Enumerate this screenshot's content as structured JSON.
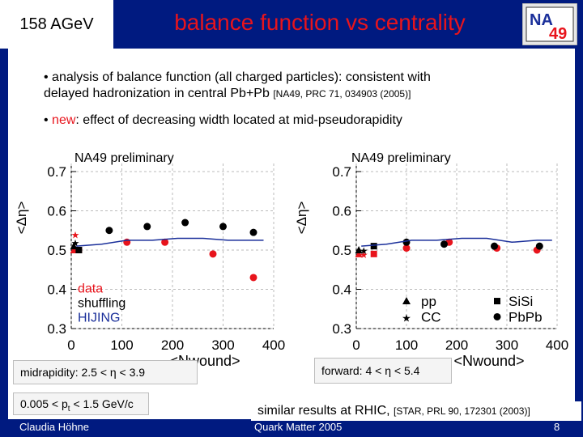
{
  "header": {
    "badge": "158 AGeV",
    "title": "balance function vs centrality"
  },
  "logo": {
    "text1": "NA",
    "text2": "49"
  },
  "bullets": {
    "analysis_line1": "• analysis of balance function (all charged particles): consistent with",
    "analysis_line2": "delayed hadronization in central Pb+Pb",
    "analysis_ref": "[NA49, PRC 71, 034903 (2005)]",
    "new_prefix": "• ",
    "new_word": "new",
    "new_text": ": effect of decreasing width located at mid-pseudorapidity"
  },
  "boxes": {
    "midrapidity": "midrapidity: 2.5 < η < 3.9",
    "forward": "forward: 4 < η < 5.4",
    "pt_prefix": "0.005 < p",
    "pt_sub": "t",
    "pt_suffix": " < 1.5 GeV/c"
  },
  "footer": {
    "rhic_text": "similar results at RHIC,",
    "rhic_ref": "[STAR, PRL 90, 172301 (2003)]",
    "author": "Claudia Höhne",
    "conference": "Quark Matter 2005",
    "page": "8"
  },
  "colors": {
    "header": "#001a80",
    "title": "#e8141c",
    "data": "#e8141c",
    "shuffling": "#000000",
    "hijing": "#1a2f9a"
  },
  "chart_data": [
    {
      "type": "scatter",
      "title": "NA49 preliminary",
      "xlabel": "<Nwound>",
      "ylabel": "<Δη>",
      "xlim": [
        0,
        400
      ],
      "ylim": [
        0.3,
        0.7
      ],
      "xticks": [
        "0",
        "100",
        "200",
        "300",
        "400"
      ],
      "yticks": [
        "0.3",
        "0.4",
        "0.5",
        "0.6",
        "0.7"
      ],
      "legend": [
        "data",
        "shuffling",
        "HIJING"
      ],
      "series": [
        {
          "name": "data",
          "marker": "circle",
          "color": "#e8141c",
          "x": [
            110,
            185,
            280,
            360
          ],
          "y": [
            0.52,
            0.52,
            0.49,
            0.43
          ]
        },
        {
          "name": "data_small_systems",
          "marker": "mixed",
          "color": "#e8141c",
          "x": [
            5,
            8,
            15
          ],
          "y": [
            0.5,
            0.54,
            0.5
          ]
        },
        {
          "name": "shuffling",
          "marker": "circle",
          "color": "#000000",
          "x": [
            75,
            150,
            225,
            300,
            360
          ],
          "y": [
            0.55,
            0.56,
            0.57,
            0.56,
            0.545
          ]
        },
        {
          "name": "shuffling_small_systems",
          "marker": "mixed",
          "color": "#000000",
          "x": [
            5,
            8,
            15
          ],
          "y": [
            0.51,
            0.52,
            0.5
          ]
        },
        {
          "name": "HIJING",
          "marker": "line",
          "color": "#1a2f9a",
          "x": [
            10,
            60,
            110,
            160,
            210,
            260,
            310,
            360,
            380
          ],
          "y": [
            0.51,
            0.515,
            0.525,
            0.525,
            0.53,
            0.53,
            0.525,
            0.525,
            0.525
          ]
        }
      ]
    },
    {
      "type": "scatter",
      "title": "NA49 preliminary",
      "xlabel": "<Nwound>",
      "ylabel": "<Δη>",
      "xlim": [
        0,
        400
      ],
      "ylim": [
        0.3,
        0.7
      ],
      "xticks": [
        "0",
        "100",
        "200",
        "300",
        "400"
      ],
      "yticks": [
        "0.3",
        "0.4",
        "0.5",
        "0.6",
        "0.7"
      ],
      "legend": [
        "pp",
        "CC",
        "SiSi",
        "PbPb"
      ],
      "series": [
        {
          "name": "data",
          "marker": "circle",
          "color": "#e8141c",
          "x": [
            100,
            185,
            280,
            360
          ],
          "y": [
            0.505,
            0.52,
            0.505,
            0.5
          ]
        },
        {
          "name": "data_small_systems",
          "marker": "mixed",
          "color": "#e8141c",
          "x": [
            5,
            15,
            35
          ],
          "y": [
            0.49,
            0.49,
            0.49
          ]
        },
        {
          "name": "shuffling",
          "marker": "circle",
          "color": "#000000",
          "x": [
            100,
            175,
            275,
            365
          ],
          "y": [
            0.52,
            0.515,
            0.51,
            0.51
          ]
        },
        {
          "name": "shuffling_small_systems",
          "marker": "mixed",
          "color": "#000000",
          "x": [
            5,
            15,
            35
          ],
          "y": [
            0.5,
            0.5,
            0.51
          ]
        },
        {
          "name": "HIJING",
          "marker": "line",
          "color": "#1a2f9a",
          "x": [
            10,
            60,
            110,
            160,
            210,
            260,
            310,
            360,
            390
          ],
          "y": [
            0.51,
            0.515,
            0.525,
            0.525,
            0.53,
            0.53,
            0.52,
            0.525,
            0.525
          ]
        }
      ]
    }
  ]
}
